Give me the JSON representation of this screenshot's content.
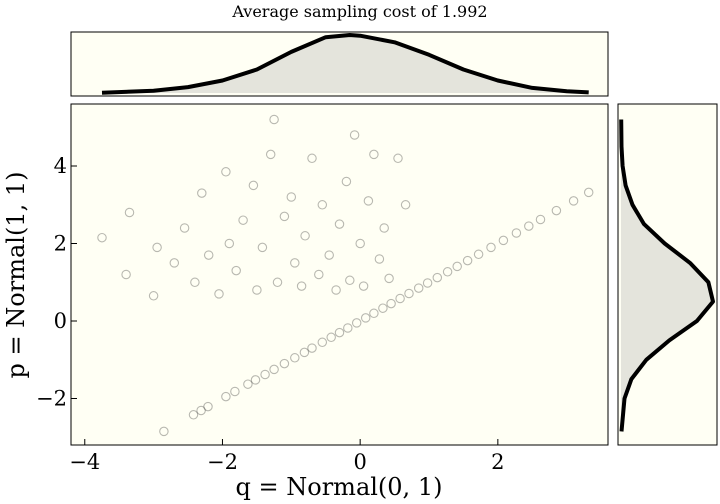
{
  "chart_data": {
    "type": "scatter",
    "title": "Average sampling cost of 1.992",
    "xlabel": "q = Normal(0, 1)",
    "ylabel": "p = Normal(1, 1)",
    "xlim": [
      -4.2,
      3.6
    ],
    "ylim": [
      -3.2,
      5.6
    ],
    "xticks": [
      -4,
      -2,
      0,
      2
    ],
    "yticks": [
      -2,
      0,
      2,
      4
    ],
    "x_tick_labels": [
      "−4",
      "−2",
      "0",
      "2"
    ],
    "y_tick_labels": [
      "−2",
      "0",
      "2",
      "4"
    ],
    "grid": false,
    "legend": "none",
    "marker": "hollow-circle",
    "marker_alpha": 0.1,
    "colors": {
      "panel_background": "#fffff4",
      "marker_edge": "#000000",
      "density_line": "#000000",
      "density_fill": "#e4e4dc"
    },
    "series": [
      {
        "description_points": "diagonal band of accepted proposals",
        "values": [
          [
            -2.85,
            -2.85
          ],
          [
            -2.42,
            -2.42
          ],
          [
            -2.31,
            -2.31
          ],
          [
            -2.21,
            -2.21
          ],
          [
            -1.95,
            -1.95
          ],
          [
            -1.82,
            -1.82
          ],
          [
            -1.63,
            -1.63
          ],
          [
            -1.52,
            -1.52
          ],
          [
            -1.38,
            -1.38
          ],
          [
            -1.25,
            -1.25
          ],
          [
            -1.1,
            -1.1
          ],
          [
            -0.95,
            -0.95
          ],
          [
            -0.81,
            -0.81
          ],
          [
            -0.7,
            -0.7
          ],
          [
            -0.55,
            -0.55
          ],
          [
            -0.42,
            -0.42
          ],
          [
            -0.3,
            -0.3
          ],
          [
            -0.18,
            -0.18
          ],
          [
            -0.05,
            -0.05
          ],
          [
            0.08,
            0.08
          ],
          [
            0.2,
            0.2
          ],
          [
            0.33,
            0.33
          ],
          [
            0.45,
            0.45
          ],
          [
            0.58,
            0.58
          ],
          [
            0.71,
            0.71
          ],
          [
            0.85,
            0.85
          ],
          [
            0.98,
            0.98
          ],
          [
            1.12,
            1.12
          ],
          [
            1.27,
            1.27
          ],
          [
            1.41,
            1.41
          ],
          [
            1.56,
            1.56
          ],
          [
            1.72,
            1.72
          ],
          [
            1.9,
            1.9
          ],
          [
            2.08,
            2.08
          ],
          [
            2.27,
            2.27
          ],
          [
            2.45,
            2.45
          ],
          [
            2.62,
            2.62
          ],
          [
            2.85,
            2.85
          ],
          [
            3.1,
            3.1
          ],
          [
            3.32,
            3.32
          ]
        ]
      },
      {
        "description_points": "off-diagonal cloud of rejected-then-resampled draws",
        "values": [
          [
            -3.75,
            2.15
          ],
          [
            -3.4,
            1.2
          ],
          [
            -3.35,
            2.8
          ],
          [
            -3.0,
            0.65
          ],
          [
            -2.95,
            1.9
          ],
          [
            -2.7,
            1.5
          ],
          [
            -2.55,
            2.4
          ],
          [
            -2.4,
            1.0
          ],
          [
            -2.3,
            3.3
          ],
          [
            -2.2,
            1.7
          ],
          [
            -2.05,
            0.7
          ],
          [
            -1.95,
            3.85
          ],
          [
            -1.9,
            2.0
          ],
          [
            -1.8,
            1.3
          ],
          [
            -1.7,
            2.6
          ],
          [
            -1.55,
            3.5
          ],
          [
            -1.5,
            0.8
          ],
          [
            -1.42,
            1.9
          ],
          [
            -1.3,
            4.3
          ],
          [
            -1.25,
            5.2
          ],
          [
            -1.2,
            1.0
          ],
          [
            -1.1,
            2.7
          ],
          [
            -1.0,
            3.2
          ],
          [
            -0.95,
            1.5
          ],
          [
            -0.85,
            0.9
          ],
          [
            -0.8,
            2.2
          ],
          [
            -0.7,
            4.2
          ],
          [
            -0.6,
            1.2
          ],
          [
            -0.55,
            3.0
          ],
          [
            -0.45,
            1.7
          ],
          [
            -0.35,
            0.8
          ],
          [
            -0.3,
            2.5
          ],
          [
            -0.2,
            3.6
          ],
          [
            -0.15,
            1.05
          ],
          [
            -0.08,
            4.8
          ],
          [
            0.0,
            2.0
          ],
          [
            0.05,
            0.9
          ],
          [
            0.12,
            3.1
          ],
          [
            0.2,
            4.3
          ],
          [
            0.28,
            1.6
          ],
          [
            0.35,
            2.4
          ],
          [
            0.42,
            1.1
          ],
          [
            0.55,
            4.2
          ],
          [
            0.66,
            3.0
          ]
        ]
      }
    ],
    "marginal_x": {
      "x": [
        -3.75,
        -3.0,
        -2.5,
        -2.0,
        -1.5,
        -1.0,
        -0.5,
        -0.15,
        0.0,
        0.5,
        1.0,
        1.5,
        2.0,
        2.5,
        3.0,
        3.32
      ],
      "density": [
        0.002,
        0.015,
        0.04,
        0.085,
        0.16,
        0.28,
        0.38,
        0.395,
        0.39,
        0.345,
        0.26,
        0.16,
        0.085,
        0.035,
        0.012,
        0.004
      ]
    },
    "marginal_y": {
      "y": [
        -2.85,
        -2.0,
        -1.5,
        -1.0,
        -0.5,
        0.0,
        0.5,
        1.0,
        1.5,
        2.0,
        2.5,
        3.0,
        3.5,
        4.0,
        4.5,
        5.2
      ],
      "density": [
        0.002,
        0.015,
        0.045,
        0.11,
        0.21,
        0.33,
        0.4,
        0.38,
        0.3,
        0.19,
        0.1,
        0.05,
        0.02,
        0.007,
        0.002,
        0.001
      ]
    }
  }
}
